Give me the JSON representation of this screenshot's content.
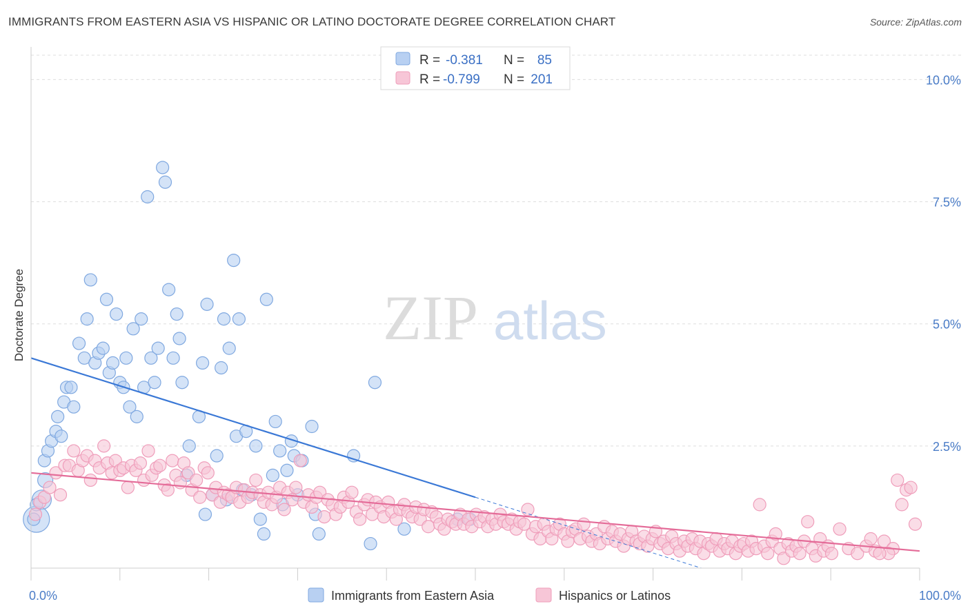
{
  "title": "IMMIGRANTS FROM EASTERN ASIA VS HISPANIC OR LATINO DOCTORATE DEGREE CORRELATION CHART",
  "source": "Source: ZipAtlas.com",
  "watermark": {
    "zip": "ZIP",
    "atlas": "atlas"
  },
  "legend_box": {
    "rows": [
      {
        "r_label": "R =",
        "r_value": "-0.381",
        "n_label": "N =",
        "n_value": "85"
      },
      {
        "r_label": "R =",
        "r_value": "-0.799",
        "n_label": "N =",
        "n_value": "201"
      }
    ]
  },
  "chart_data": {
    "type": "scatter",
    "title": "IMMIGRANTS FROM EASTERN ASIA VS HISPANIC OR LATINO DOCTORATE DEGREE CORRELATION CHART",
    "xlabel": "",
    "ylabel": "Doctorate Degree",
    "xlim": [
      0,
      100
    ],
    "ylim": [
      0,
      10.5
    ],
    "x_tick_labels": [
      "0.0%",
      "100.0%"
    ],
    "y_ticks": [
      2.5,
      5.0,
      7.5,
      10.0
    ],
    "y_tick_labels": [
      "2.5%",
      "5.0%",
      "7.5%",
      "10.0%"
    ],
    "grid": true,
    "series": [
      {
        "name": "Immigrants from Eastern Asia",
        "color": "#7fa8e0",
        "fill": "#b8d0f2",
        "line_color": "#3a78d6",
        "r": -0.381,
        "n": 85,
        "trend": {
          "x0": 0,
          "y0": 4.3,
          "x1": 50,
          "y1": 1.45,
          "dash_to_x": 100,
          "dash_to_y": -1.4
        },
        "points": [
          [
            1.2,
            1.4
          ],
          [
            0.6,
            1.0
          ],
          [
            1.6,
            1.8
          ],
          [
            1.5,
            2.2
          ],
          [
            1.9,
            2.4
          ],
          [
            2.3,
            2.6
          ],
          [
            2.8,
            2.8
          ],
          [
            3.4,
            2.7
          ],
          [
            3.0,
            3.1
          ],
          [
            3.7,
            3.4
          ],
          [
            4.0,
            3.7
          ],
          [
            4.5,
            3.7
          ],
          [
            4.8,
            3.3
          ],
          [
            5.4,
            4.6
          ],
          [
            6.0,
            4.3
          ],
          [
            6.3,
            5.1
          ],
          [
            6.7,
            5.9
          ],
          [
            7.2,
            4.2
          ],
          [
            7.6,
            4.4
          ],
          [
            8.1,
            4.5
          ],
          [
            8.5,
            5.5
          ],
          [
            8.8,
            4.0
          ],
          [
            9.2,
            4.2
          ],
          [
            9.6,
            5.2
          ],
          [
            10.0,
            3.8
          ],
          [
            10.4,
            3.7
          ],
          [
            10.7,
            4.3
          ],
          [
            11.1,
            3.3
          ],
          [
            11.5,
            4.9
          ],
          [
            11.9,
            3.1
          ],
          [
            12.4,
            5.1
          ],
          [
            12.7,
            3.7
          ],
          [
            13.1,
            7.6
          ],
          [
            13.5,
            4.3
          ],
          [
            13.9,
            3.8
          ],
          [
            14.3,
            4.5
          ],
          [
            14.8,
            8.2
          ],
          [
            15.1,
            7.9
          ],
          [
            15.5,
            5.7
          ],
          [
            16.0,
            4.3
          ],
          [
            16.4,
            5.2
          ],
          [
            16.7,
            4.7
          ],
          [
            17.0,
            3.8
          ],
          [
            17.5,
            1.9
          ],
          [
            17.8,
            2.5
          ],
          [
            18.9,
            3.1
          ],
          [
            19.3,
            4.2
          ],
          [
            19.6,
            1.1
          ],
          [
            19.8,
            5.4
          ],
          [
            20.4,
            1.5
          ],
          [
            20.9,
            2.3
          ],
          [
            21.4,
            4.1
          ],
          [
            21.7,
            5.1
          ],
          [
            22.0,
            1.4
          ],
          [
            22.3,
            4.5
          ],
          [
            22.8,
            6.3
          ],
          [
            23.1,
            2.7
          ],
          [
            23.4,
            5.1
          ],
          [
            23.8,
            1.6
          ],
          [
            24.2,
            2.8
          ],
          [
            24.8,
            1.5
          ],
          [
            25.3,
            2.5
          ],
          [
            25.8,
            1.0
          ],
          [
            26.2,
            0.7
          ],
          [
            26.5,
            5.5
          ],
          [
            27.2,
            1.9
          ],
          [
            27.5,
            3.0
          ],
          [
            28.0,
            2.4
          ],
          [
            28.3,
            1.3
          ],
          [
            28.8,
            2.0
          ],
          [
            29.3,
            2.6
          ],
          [
            29.6,
            2.3
          ],
          [
            30.0,
            1.5
          ],
          [
            30.5,
            2.2
          ],
          [
            31.6,
            2.9
          ],
          [
            32.0,
            1.1
          ],
          [
            32.4,
            0.7
          ],
          [
            36.3,
            2.3
          ],
          [
            38.2,
            0.5
          ],
          [
            38.7,
            3.8
          ],
          [
            42.0,
            0.8
          ],
          [
            48.0,
            1.0
          ],
          [
            49.4,
            1.0
          ],
          [
            0.3,
            1.0
          ],
          [
            0.6,
            1.3
          ]
        ]
      },
      {
        "name": "Hispanics or Latinos",
        "color": "#ef9dba",
        "fill": "#f7c6d7",
        "line_color": "#e46b98",
        "r": -0.799,
        "n": 201,
        "trend": {
          "x0": 0,
          "y0": 1.95,
          "x1": 100,
          "y1": 0.35
        },
        "points": [
          [
            0.5,
            1.1
          ],
          [
            1.0,
            1.35
          ],
          [
            1.5,
            1.45
          ],
          [
            2.1,
            1.65
          ],
          [
            2.8,
            1.95
          ],
          [
            3.3,
            1.5
          ],
          [
            3.8,
            2.1
          ],
          [
            4.3,
            2.1
          ],
          [
            4.8,
            2.4
          ],
          [
            5.3,
            2.0
          ],
          [
            5.8,
            2.2
          ],
          [
            6.3,
            2.3
          ],
          [
            6.7,
            1.8
          ],
          [
            7.2,
            2.2
          ],
          [
            7.7,
            2.05
          ],
          [
            8.2,
            2.5
          ],
          [
            8.6,
            2.15
          ],
          [
            9.1,
            1.95
          ],
          [
            9.5,
            2.2
          ],
          [
            10.0,
            2.0
          ],
          [
            10.4,
            2.05
          ],
          [
            10.9,
            1.65
          ],
          [
            11.3,
            2.1
          ],
          [
            11.8,
            2.0
          ],
          [
            12.3,
            2.15
          ],
          [
            12.7,
            1.8
          ],
          [
            13.2,
            2.4
          ],
          [
            13.6,
            1.9
          ],
          [
            14.1,
            2.05
          ],
          [
            14.5,
            2.1
          ],
          [
            15.0,
            1.7
          ],
          [
            15.4,
            1.6
          ],
          [
            15.9,
            2.2
          ],
          [
            16.3,
            1.9
          ],
          [
            16.8,
            1.75
          ],
          [
            17.2,
            2.15
          ],
          [
            17.7,
            1.95
          ],
          [
            18.1,
            1.6
          ],
          [
            18.6,
            1.8
          ],
          [
            19.0,
            1.45
          ],
          [
            19.5,
            2.05
          ],
          [
            19.9,
            1.95
          ],
          [
            20.4,
            1.5
          ],
          [
            20.8,
            1.65
          ],
          [
            21.3,
            1.35
          ],
          [
            21.7,
            1.55
          ],
          [
            22.2,
            1.5
          ],
          [
            22.6,
            1.45
          ],
          [
            23.1,
            1.65
          ],
          [
            23.5,
            1.35
          ],
          [
            24.0,
            1.6
          ],
          [
            24.4,
            1.45
          ],
          [
            24.9,
            1.55
          ],
          [
            25.3,
            1.8
          ],
          [
            25.8,
            1.5
          ],
          [
            26.2,
            1.35
          ],
          [
            26.7,
            1.55
          ],
          [
            27.1,
            1.3
          ],
          [
            27.6,
            1.45
          ],
          [
            28.0,
            1.65
          ],
          [
            28.5,
            1.2
          ],
          [
            28.9,
            1.55
          ],
          [
            29.4,
            1.4
          ],
          [
            29.8,
            1.65
          ],
          [
            30.3,
            2.2
          ],
          [
            30.7,
            1.35
          ],
          [
            31.2,
            1.5
          ],
          [
            31.6,
            1.25
          ],
          [
            32.1,
            1.45
          ],
          [
            32.5,
            1.55
          ],
          [
            33.0,
            1.05
          ],
          [
            33.4,
            1.4
          ],
          [
            33.9,
            1.3
          ],
          [
            34.3,
            1.1
          ],
          [
            34.8,
            1.25
          ],
          [
            35.2,
            1.45
          ],
          [
            35.7,
            1.35
          ],
          [
            36.1,
            1.55
          ],
          [
            36.6,
            1.15
          ],
          [
            37.0,
            1.0
          ],
          [
            37.5,
            1.3
          ],
          [
            37.9,
            1.4
          ],
          [
            38.4,
            1.1
          ],
          [
            38.8,
            1.35
          ],
          [
            39.3,
            1.25
          ],
          [
            39.7,
            1.05
          ],
          [
            40.2,
            1.35
          ],
          [
            40.6,
            1.15
          ],
          [
            41.1,
            1.0
          ],
          [
            41.5,
            1.2
          ],
          [
            42.0,
            1.3
          ],
          [
            42.4,
            1.15
          ],
          [
            42.9,
            1.05
          ],
          [
            43.3,
            1.25
          ],
          [
            43.8,
            1.0
          ],
          [
            44.2,
            1.2
          ],
          [
            44.7,
            0.85
          ],
          [
            45.1,
            1.15
          ],
          [
            45.6,
            1.05
          ],
          [
            46.0,
            0.9
          ],
          [
            46.5,
            0.8
          ],
          [
            46.9,
            1.0
          ],
          [
            47.4,
            0.95
          ],
          [
            47.8,
            0.9
          ],
          [
            48.3,
            1.1
          ],
          [
            48.7,
            0.9
          ],
          [
            49.2,
            1.0
          ],
          [
            49.6,
            0.85
          ],
          [
            50.1,
            1.1
          ],
          [
            50.5,
            0.95
          ],
          [
            51.0,
            1.05
          ],
          [
            51.4,
            0.85
          ],
          [
            51.9,
            1.0
          ],
          [
            52.3,
            0.9
          ],
          [
            52.8,
            1.1
          ],
          [
            53.2,
            0.95
          ],
          [
            53.7,
            0.9
          ],
          [
            54.1,
            1.0
          ],
          [
            54.6,
            0.8
          ],
          [
            55.0,
            0.95
          ],
          [
            55.5,
            0.9
          ],
          [
            55.9,
            1.2
          ],
          [
            56.4,
            0.7
          ],
          [
            56.8,
            0.85
          ],
          [
            57.3,
            0.6
          ],
          [
            57.7,
            0.9
          ],
          [
            58.2,
            0.75
          ],
          [
            58.6,
            0.6
          ],
          [
            59.1,
            0.8
          ],
          [
            59.5,
            0.9
          ],
          [
            60.0,
            0.7
          ],
          [
            60.4,
            0.55
          ],
          [
            60.9,
            0.75
          ],
          [
            61.3,
            0.8
          ],
          [
            61.8,
            0.6
          ],
          [
            62.2,
            0.9
          ],
          [
            62.7,
            0.65
          ],
          [
            63.1,
            0.55
          ],
          [
            63.6,
            0.7
          ],
          [
            64.0,
            0.5
          ],
          [
            64.5,
            0.85
          ],
          [
            64.9,
            0.6
          ],
          [
            65.4,
            0.75
          ],
          [
            65.8,
            0.55
          ],
          [
            66.3,
            0.7
          ],
          [
            66.7,
            0.45
          ],
          [
            67.2,
            0.6
          ],
          [
            67.6,
            0.75
          ],
          [
            68.1,
            0.55
          ],
          [
            68.5,
            0.5
          ],
          [
            69.0,
            0.65
          ],
          [
            69.4,
            0.45
          ],
          [
            69.9,
            0.6
          ],
          [
            70.3,
            0.75
          ],
          [
            70.8,
            0.5
          ],
          [
            71.2,
            0.55
          ],
          [
            71.7,
            0.4
          ],
          [
            72.1,
            0.65
          ],
          [
            72.6,
            0.5
          ],
          [
            73.0,
            0.35
          ],
          [
            73.5,
            0.55
          ],
          [
            73.9,
            0.45
          ],
          [
            74.4,
            0.6
          ],
          [
            74.8,
            0.4
          ],
          [
            75.3,
            0.55
          ],
          [
            75.7,
            0.3
          ],
          [
            76.2,
            0.5
          ],
          [
            76.6,
            0.45
          ],
          [
            77.1,
            0.6
          ],
          [
            77.5,
            0.35
          ],
          [
            78.0,
            0.5
          ],
          [
            78.4,
            0.4
          ],
          [
            78.9,
            0.55
          ],
          [
            79.3,
            0.3
          ],
          [
            79.8,
            0.45
          ],
          [
            80.2,
            0.5
          ],
          [
            80.7,
            0.35
          ],
          [
            81.1,
            0.55
          ],
          [
            81.6,
            0.4
          ],
          [
            82.0,
            1.3
          ],
          [
            82.5,
            0.45
          ],
          [
            82.9,
            0.3
          ],
          [
            83.4,
            0.55
          ],
          [
            83.8,
            0.7
          ],
          [
            84.3,
            0.4
          ],
          [
            84.7,
            0.2
          ],
          [
            85.2,
            0.5
          ],
          [
            85.6,
            0.35
          ],
          [
            86.1,
            0.45
          ],
          [
            86.5,
            0.3
          ],
          [
            87.0,
            0.55
          ],
          [
            87.4,
            0.95
          ],
          [
            87.9,
            0.4
          ],
          [
            88.3,
            0.25
          ],
          [
            88.8,
            0.6
          ],
          [
            89.2,
            0.35
          ],
          [
            89.7,
            0.45
          ],
          [
            90.1,
            0.3
          ],
          [
            91.0,
            0.8
          ],
          [
            92.0,
            0.4
          ],
          [
            93.0,
            0.3
          ],
          [
            94.0,
            0.45
          ],
          [
            95.0,
            0.35
          ],
          [
            96.0,
            0.55
          ],
          [
            97.0,
            0.4
          ],
          [
            98.0,
            1.3
          ],
          [
            98.5,
            1.6
          ],
          [
            99.0,
            1.65
          ],
          [
            99.5,
            0.9
          ],
          [
            97.5,
            1.8
          ],
          [
            96.5,
            0.3
          ],
          [
            95.5,
            0.3
          ],
          [
            94.5,
            0.6
          ]
        ]
      }
    ]
  }
}
